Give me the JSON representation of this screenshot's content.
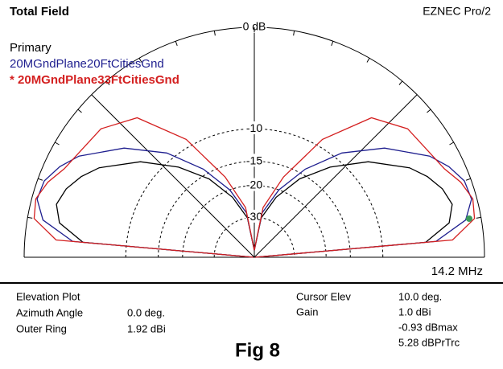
{
  "chart_data": {
    "type": "polar-elevation",
    "title": "Total Field",
    "program": "EZNEC Pro/2",
    "legend_title": "Primary",
    "frequency": "14.2 MHz",
    "rlog": true,
    "rticks": [
      {
        "value": 0,
        "label": "0 dB"
      },
      {
        "value": -10,
        "label": "-10"
      },
      {
        "value": -15,
        "label": "-15"
      },
      {
        "value": -20,
        "label": "-20"
      },
      {
        "value": -30,
        "label": "-30"
      }
    ],
    "angles": [
      0,
      5,
      10,
      15,
      20,
      25,
      30,
      40,
      50,
      60,
      70,
      80,
      90,
      100,
      110,
      120,
      130,
      140,
      150,
      155,
      160,
      165,
      170,
      175,
      180
    ],
    "series": [
      {
        "name": "Primary",
        "color": "#000000",
        "values": [
          -99,
          -5,
          -2.6,
          -2,
          -2.4,
          -3.2,
          -4.3,
          -7.5,
          -11.5,
          -16,
          -22,
          -30,
          -60,
          -30,
          -22,
          -16,
          -11.5,
          -7.5,
          -4.3,
          -3.2,
          -2.4,
          -2,
          -2.6,
          -5,
          -99
        ]
      },
      {
        "name": "20MGndPlane20FtCitiesGnd",
        "color": "#1f1f8f",
        "values": [
          -99,
          -4,
          -1.2,
          -0.4,
          -0.5,
          -1.2,
          -2.2,
          -5.2,
          -9,
          -14,
          -20,
          -28,
          -60,
          -28,
          -20,
          -14,
          -9,
          -5.2,
          -2.2,
          -1.2,
          -0.5,
          -0.4,
          -1.2,
          -4,
          -99
        ]
      },
      {
        "name": "* 20MGndPlane33FtCitiesGnd",
        "color": "#d42020",
        "values": [
          -99,
          -2.5,
          -0.5,
          -0.3,
          -0.8,
          -1.6,
          -2,
          -2.4,
          -4,
          -9,
          -17,
          -26,
          -60,
          -26,
          -17,
          -9,
          -4,
          -2.4,
          -2,
          -1.6,
          -0.8,
          -0.3,
          -0.5,
          -2.5,
          -99
        ]
      }
    ],
    "info_left": [
      [
        "Elevation Plot",
        ""
      ],
      [
        "Azimuth Angle",
        "0.0 deg."
      ],
      [
        "Outer Ring",
        "1.92 dBi"
      ]
    ],
    "info_right": [
      [
        "Cursor Elev",
        "10.0 deg."
      ],
      [
        "Gain",
        "1.0 dBi"
      ],
      [
        "",
        "-0.93 dBmax"
      ],
      [
        "",
        "5.28 dBPrTrc"
      ]
    ],
    "caption": "Fig 8"
  }
}
